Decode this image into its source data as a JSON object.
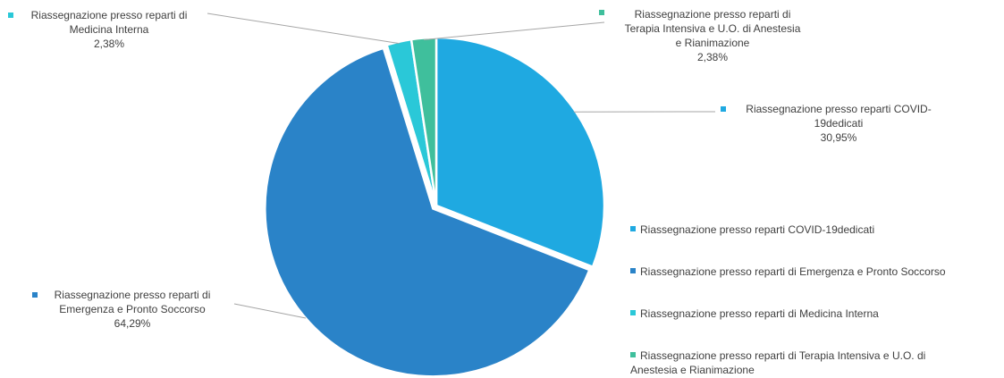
{
  "chart_data": {
    "type": "pie",
    "title": "",
    "slices": [
      {
        "label": "Riassegnazione presso reparti COVID-19dedicati",
        "callout_lines": [
          "Riassegnazione  presso reparti  COVID-",
          "19dedicati"
        ],
        "value": 30.95,
        "value_label": "30,95%",
        "color": "#1fa9e1"
      },
      {
        "label": "Riassegnazione presso reparti di Emergenza e Pronto Soccorso",
        "callout_lines": [
          "Riassegnazione  presso reparti di",
          "Emergenza  e Pronto Soccorso"
        ],
        "value": 64.29,
        "value_label": "64,29%",
        "color": "#2a83c8"
      },
      {
        "label": "Riassegnazione presso reparti di Medicina Interna",
        "callout_lines": [
          "Riassegnazione  presso reparti  di",
          "Medicina  Interna"
        ],
        "value": 2.38,
        "value_label": "2,38%",
        "color": "#2ac8d8"
      },
      {
        "label": "Riassegnazione presso reparti di Terapia Intensiva e U.O. di Anestesia e Rianimazione",
        "legend_lines": [
          "Riassegnazione presso reparti di Terapia Intensiva e U.O. di",
          "Anestesia e Rianimazione"
        ],
        "callout_lines": [
          "Riassegnazione  presso reparti  di",
          "Terapia  Intensiva  e U.O. di Anestesia",
          "e Rianimazione"
        ],
        "value": 2.38,
        "value_label": "2,38%",
        "color": "#3fbf9c"
      }
    ],
    "legend_position": "right"
  }
}
